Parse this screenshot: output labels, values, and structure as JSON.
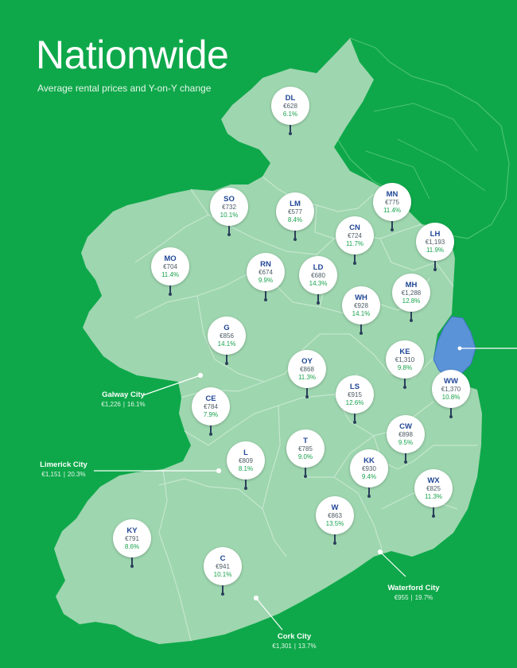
{
  "title": "Nationwide",
  "subtitle": "Average rental prices and Y-on-Y change",
  "colors": {
    "background": "#0ea84a",
    "land": "#9ed6af",
    "border": "#c5e7cf",
    "highlight": "#5b93d8",
    "code_text": "#1f4696",
    "change_text": "#18a34c"
  },
  "counties": [
    {
      "id": "dl",
      "code": "DL",
      "price": "€628",
      "change": "6.1%"
    },
    {
      "id": "so",
      "code": "SO",
      "price": "€732",
      "change": "10.1%"
    },
    {
      "id": "lm",
      "code": "LM",
      "price": "€577",
      "change": "8.4%"
    },
    {
      "id": "mn",
      "code": "MN",
      "price": "€775",
      "change": "11.4%"
    },
    {
      "id": "cn",
      "code": "CN",
      "price": "€724",
      "change": "11.7%"
    },
    {
      "id": "lh",
      "code": "LH",
      "price": "€1,193",
      "change": "11.9%"
    },
    {
      "id": "mo",
      "code": "MO",
      "price": "€704",
      "change": "11.4%"
    },
    {
      "id": "rn",
      "code": "RN",
      "price": "€674",
      "change": "9.9%"
    },
    {
      "id": "ld",
      "code": "LD",
      "price": "€680",
      "change": "14.3%"
    },
    {
      "id": "mh",
      "code": "MH",
      "price": "€1,288",
      "change": "12.8%"
    },
    {
      "id": "wh",
      "code": "WH",
      "price": "€928",
      "change": "14.1%"
    },
    {
      "id": "g",
      "code": "G",
      "price": "€856",
      "change": "14.1%"
    },
    {
      "id": "oy",
      "code": "OY",
      "price": "€868",
      "change": "11.3%"
    },
    {
      "id": "ke",
      "code": "KE",
      "price": "€1,310",
      "change": "9.8%"
    },
    {
      "id": "ww",
      "code": "WW",
      "price": "€1,370",
      "change": "10.8%"
    },
    {
      "id": "ce",
      "code": "CE",
      "price": "€784",
      "change": "7.9%"
    },
    {
      "id": "ls",
      "code": "LS",
      "price": "€915",
      "change": "12.6%"
    },
    {
      "id": "cw",
      "code": "CW",
      "price": "€898",
      "change": "9.5%"
    },
    {
      "id": "l",
      "code": "L",
      "price": "€809",
      "change": "8.1%"
    },
    {
      "id": "t",
      "code": "T",
      "price": "€785",
      "change": "9.0%"
    },
    {
      "id": "kk",
      "code": "KK",
      "price": "€930",
      "change": "9.4%"
    },
    {
      "id": "wx",
      "code": "WX",
      "price": "€825",
      "change": "11.3%"
    },
    {
      "id": "w",
      "code": "W",
      "price": "€863",
      "change": "13.5%"
    },
    {
      "id": "ky",
      "code": "KY",
      "price": "€791",
      "change": "8.6%"
    },
    {
      "id": "c",
      "code": "C",
      "price": "€941",
      "change": "10.1%"
    }
  ],
  "cities": [
    {
      "id": "galway",
      "name": "Galway City",
      "price": "€1,226",
      "change": "16.1%"
    },
    {
      "id": "limerick",
      "name": "Limerick City",
      "price": "€1,151",
      "change": "20.3%"
    },
    {
      "id": "waterford",
      "name": "Waterford City",
      "price": "€955",
      "change": "19.7%"
    },
    {
      "id": "cork",
      "name": "Cork City",
      "price": "€1,301",
      "change": "13.7%"
    }
  ]
}
